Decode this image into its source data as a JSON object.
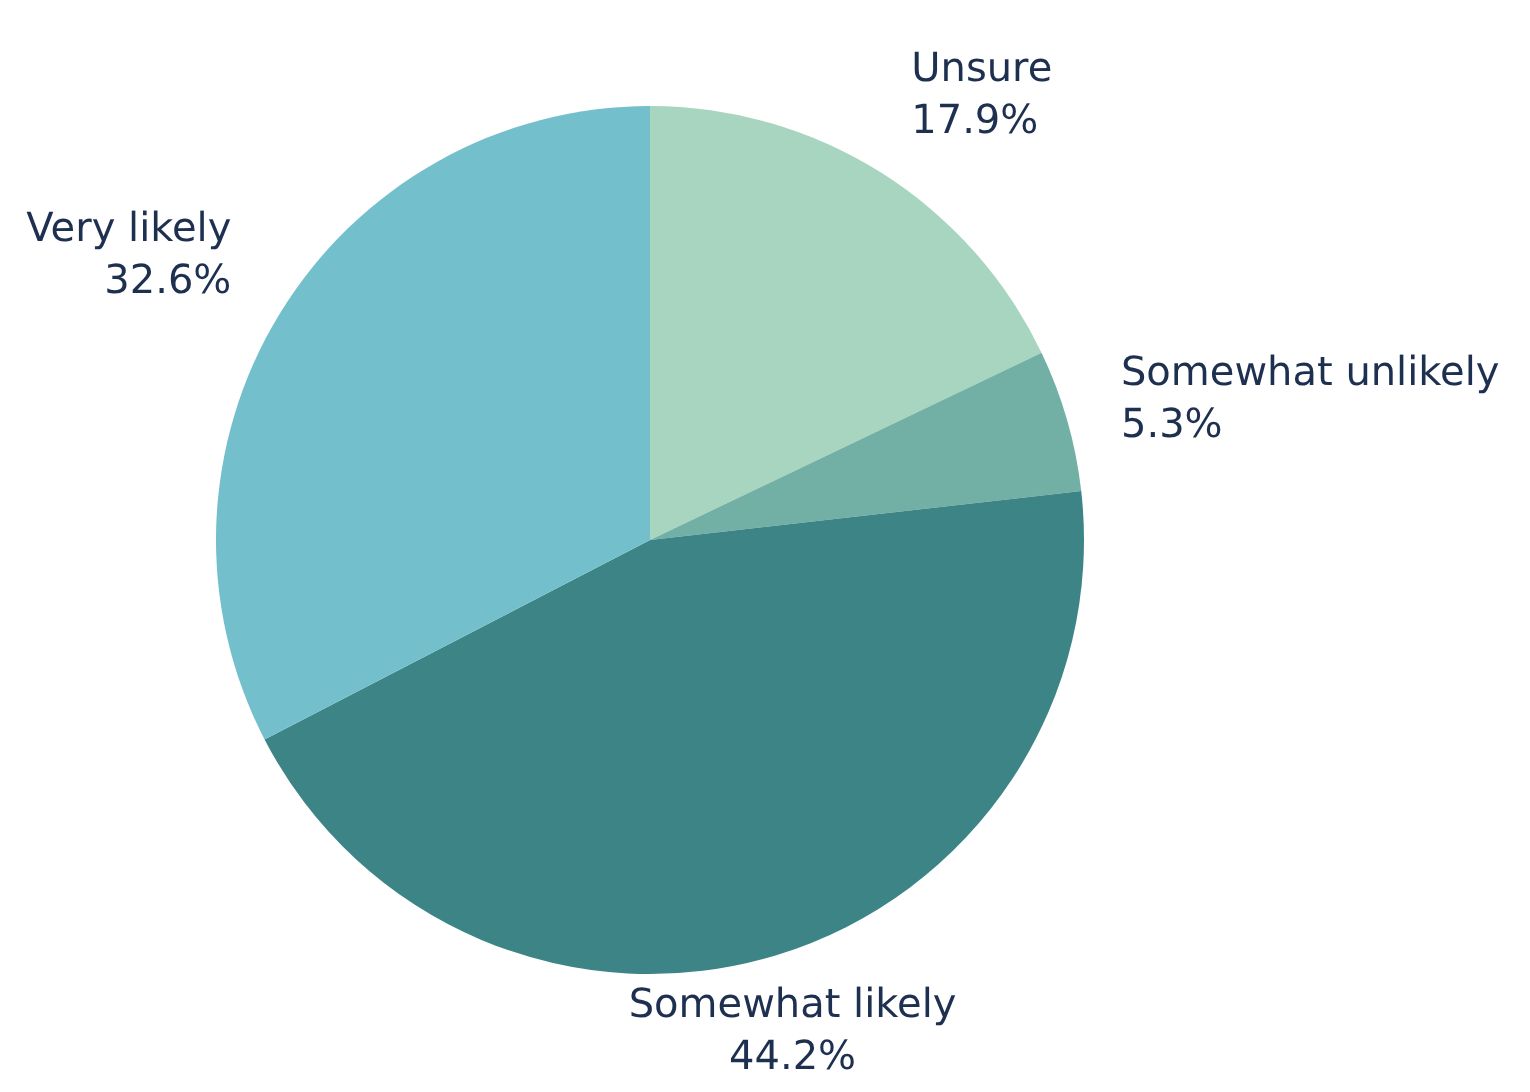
{
  "chart_data": {
    "type": "pie",
    "categories": [
      "Unsure",
      "Somewhat unlikely",
      "Somewhat likely",
      "Very likely"
    ],
    "values": [
      17.9,
      5.3,
      44.2,
      32.6
    ],
    "value_labels": [
      "17.9%",
      "5.3%",
      "44.2%",
      "32.6%"
    ],
    "colors": [
      "#a8d5bf",
      "#72b0a5",
      "#3d8487",
      "#73c0cc"
    ]
  }
}
